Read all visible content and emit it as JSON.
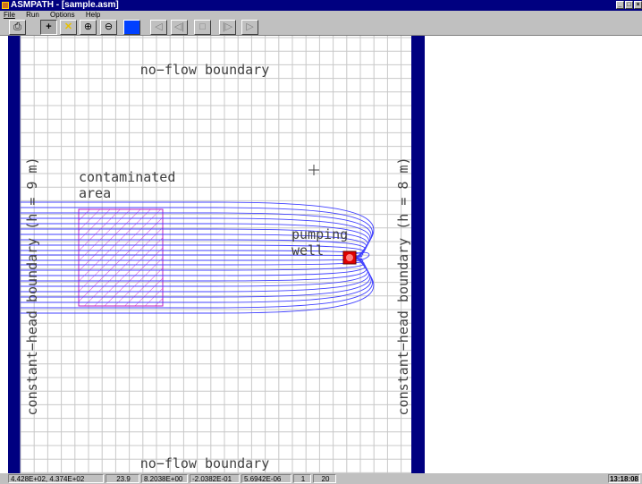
{
  "window": {
    "title": "ASMPATH - [sample.asm]"
  },
  "menu": {
    "items": [
      "File",
      "Run",
      "Options",
      "Help"
    ]
  },
  "toolbar": {
    "buttons": [
      {
        "icon": "print-icon",
        "glyph": "⎙"
      },
      {
        "icon": "crosshair-icon",
        "glyph": "+"
      },
      {
        "icon": "x-mark-icon",
        "glyph": "✕"
      },
      {
        "icon": "zoom-in-icon",
        "glyph": "⊕"
      },
      {
        "icon": "zoom-out-icon",
        "glyph": "⊖"
      },
      {
        "icon": "color-square-icon",
        "glyph": ""
      },
      {
        "icon": "step-back-icon",
        "glyph": "◁"
      },
      {
        "icon": "rewind-icon",
        "glyph": "◁|"
      },
      {
        "icon": "stop-icon",
        "glyph": "□"
      },
      {
        "icon": "forward-icon",
        "glyph": "|▷"
      },
      {
        "icon": "play-icon",
        "glyph": "▷"
      }
    ]
  },
  "map": {
    "top_boundary": "no−flow boundary",
    "bottom_boundary": "no−flow boundary",
    "left_boundary": "constant−head boundary (h = 9 m)",
    "right_boundary": "constant−head boundary (h = 8 m)",
    "contaminated_line1": "contaminated",
    "contaminated_line2": "area",
    "well_line1": "pumping",
    "well_line2": "well",
    "colors": {
      "border": "#000080",
      "grid": "#c8c8c8",
      "pathlines": "#4040ff",
      "hatch": "#e040e0",
      "well": "#e00000"
    }
  },
  "status": {
    "coords": "4.428E+02, 4.374E+02",
    "value1": "23.9",
    "value2": "8.2038E+00",
    "value3": "-2.0382E-01",
    "value4": "5.6942E-06",
    "value5": "1",
    "value6": "20",
    "time": "13:18:08"
  }
}
